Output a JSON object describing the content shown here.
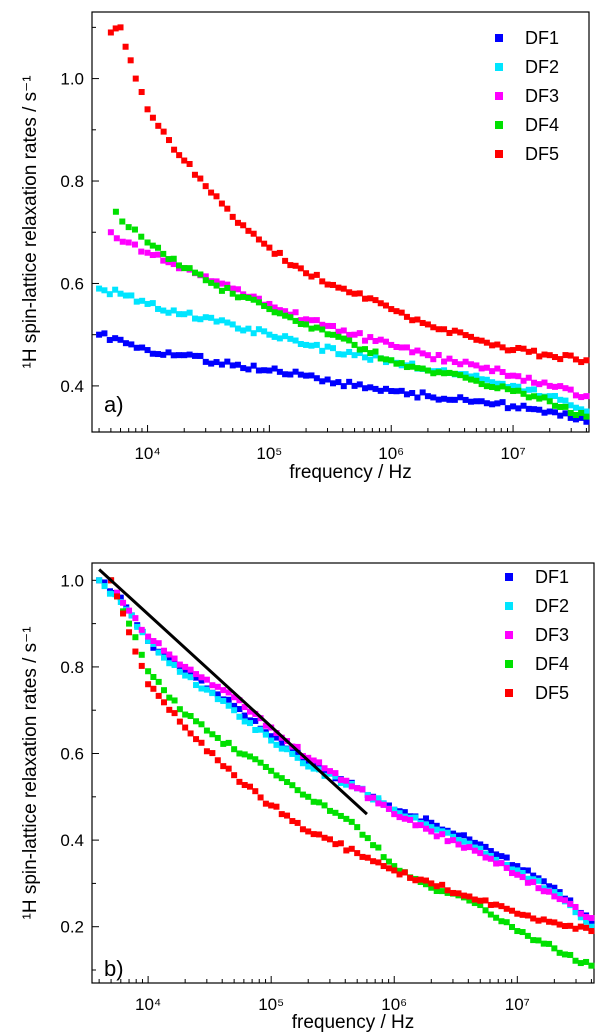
{
  "chart_data": [
    {
      "type": "scatter",
      "panel_label": "a)",
      "xlabel": "frequency / Hz",
      "ylabel": "¹H spin-lattice relaxation rates / s⁻¹",
      "x_scale": "log",
      "xlim": [
        3500,
        42000000
      ],
      "ylim": [
        0.31,
        1.13
      ],
      "x_tick_labels": [
        "10⁴",
        "10⁵",
        "10⁶",
        "10⁷"
      ],
      "x_tick_values": [
        10000,
        100000,
        1000000,
        10000000
      ],
      "y_ticks": [
        0.4,
        0.6,
        0.8,
        1.0
      ],
      "y_tick_labels": [
        "0.4",
        "0.6",
        "0.8",
        "1.0"
      ],
      "legend_position": "top-right",
      "series": [
        {
          "name": "DF1",
          "color": "#0000ff",
          "x": [
            4000,
            6000,
            10000,
            20000,
            50000,
            100000,
            200000,
            500000,
            1000000,
            2000000,
            5000000,
            10000000,
            20000000,
            40000000
          ],
          "y": [
            0.5,
            0.49,
            0.47,
            0.46,
            0.44,
            0.43,
            0.42,
            0.4,
            0.39,
            0.38,
            0.37,
            0.36,
            0.35,
            0.33
          ]
        },
        {
          "name": "DF2",
          "color": "#00e5ff",
          "x": [
            4000,
            6000,
            10000,
            20000,
            50000,
            100000,
            200000,
            500000,
            1000000,
            2000000,
            5000000,
            10000000,
            20000000,
            40000000
          ],
          "y": [
            0.59,
            0.58,
            0.56,
            0.54,
            0.52,
            0.5,
            0.48,
            0.46,
            0.45,
            0.43,
            0.42,
            0.4,
            0.38,
            0.35
          ]
        },
        {
          "name": "DF3",
          "color": "#ff00ff",
          "x": [
            5000,
            7000,
            10000,
            20000,
            50000,
            100000,
            200000,
            500000,
            1000000,
            2000000,
            5000000,
            10000000,
            20000000,
            40000000
          ],
          "y": [
            0.7,
            0.68,
            0.66,
            0.63,
            0.59,
            0.56,
            0.53,
            0.5,
            0.48,
            0.46,
            0.44,
            0.42,
            0.4,
            0.38
          ]
        },
        {
          "name": "DF4",
          "color": "#00e000",
          "x": [
            5500,
            7000,
            10000,
            20000,
            50000,
            100000,
            200000,
            500000,
            1000000,
            2000000,
            5000000,
            10000000,
            20000000,
            40000000
          ],
          "y": [
            0.74,
            0.71,
            0.68,
            0.63,
            0.58,
            0.55,
            0.52,
            0.48,
            0.45,
            0.43,
            0.41,
            0.39,
            0.37,
            0.34
          ]
        },
        {
          "name": "DF5",
          "color": "#ff0000",
          "x": [
            5000,
            6000,
            8000,
            10000,
            15000,
            20000,
            30000,
            50000,
            100000,
            200000,
            500000,
            1000000,
            2000000,
            5000000,
            10000000,
            20000000,
            40000000
          ],
          "y": [
            1.09,
            1.1,
            1.0,
            0.94,
            0.88,
            0.84,
            0.79,
            0.73,
            0.67,
            0.62,
            0.58,
            0.55,
            0.52,
            0.49,
            0.47,
            0.46,
            0.45
          ]
        }
      ]
    },
    {
      "type": "scatter",
      "panel_label": "b)",
      "xlabel": "frequency / Hz",
      "ylabel": "¹H spin-lattice relaxation rates / s⁻¹",
      "x_scale": "log",
      "xlim": [
        3500,
        42000000
      ],
      "ylim": [
        0.07,
        1.04
      ],
      "x_tick_labels": [
        "10⁴",
        "10⁵",
        "10⁶",
        "10⁷"
      ],
      "x_tick_values": [
        10000,
        100000,
        1000000,
        10000000
      ],
      "y_ticks": [
        0.2,
        0.4,
        0.6,
        0.8,
        1.0
      ],
      "y_tick_labels": [
        "0.2",
        "0.4",
        "0.6",
        "0.8",
        "1.0"
      ],
      "legend_position": "top-right",
      "series": [
        {
          "name": "DF1",
          "color": "#0000ff",
          "x": [
            4000,
            6000,
            10000,
            20000,
            50000,
            100000,
            200000,
            500000,
            1000000,
            2000000,
            5000000,
            10000000,
            20000000,
            40000000
          ],
          "y": [
            1.0,
            0.96,
            0.86,
            0.79,
            0.71,
            0.64,
            0.58,
            0.52,
            0.47,
            0.44,
            0.39,
            0.34,
            0.29,
            0.21
          ]
        },
        {
          "name": "DF2",
          "color": "#00e5ff",
          "x": [
            4000,
            6000,
            10000,
            20000,
            50000,
            100000,
            200000,
            500000,
            1000000,
            2000000,
            5000000,
            10000000,
            20000000,
            40000000
          ],
          "y": [
            1.0,
            0.95,
            0.86,
            0.78,
            0.7,
            0.63,
            0.57,
            0.52,
            0.47,
            0.43,
            0.38,
            0.33,
            0.28,
            0.2
          ]
        },
        {
          "name": "DF3",
          "color": "#ff00ff",
          "x": [
            5000,
            7000,
            10000,
            20000,
            50000,
            100000,
            200000,
            500000,
            1000000,
            2000000,
            5000000,
            10000000,
            20000000,
            40000000
          ],
          "y": [
            1.0,
            0.93,
            0.87,
            0.8,
            0.73,
            0.66,
            0.59,
            0.52,
            0.46,
            0.42,
            0.37,
            0.32,
            0.27,
            0.22
          ]
        },
        {
          "name": "DF4",
          "color": "#00e000",
          "x": [
            5000,
            7000,
            10000,
            20000,
            50000,
            100000,
            200000,
            500000,
            1000000,
            2000000,
            5000000,
            10000000,
            20000000,
            40000000
          ],
          "y": [
            1.0,
            0.9,
            0.79,
            0.69,
            0.61,
            0.56,
            0.5,
            0.43,
            0.34,
            0.29,
            0.25,
            0.19,
            0.15,
            0.11
          ]
        },
        {
          "name": "DF5",
          "color": "#ff0000",
          "x": [
            5000,
            7000,
            10000,
            20000,
            50000,
            100000,
            200000,
            500000,
            1000000,
            2000000,
            5000000,
            10000000,
            20000000,
            40000000
          ],
          "y": [
            1.0,
            0.88,
            0.76,
            0.66,
            0.55,
            0.48,
            0.42,
            0.37,
            0.33,
            0.3,
            0.26,
            0.23,
            0.21,
            0.19
          ]
        }
      ],
      "fit_line": {
        "color": "#000000",
        "x": [
          4000,
          600000
        ],
        "y": [
          1.025,
          0.46
        ]
      }
    }
  ]
}
